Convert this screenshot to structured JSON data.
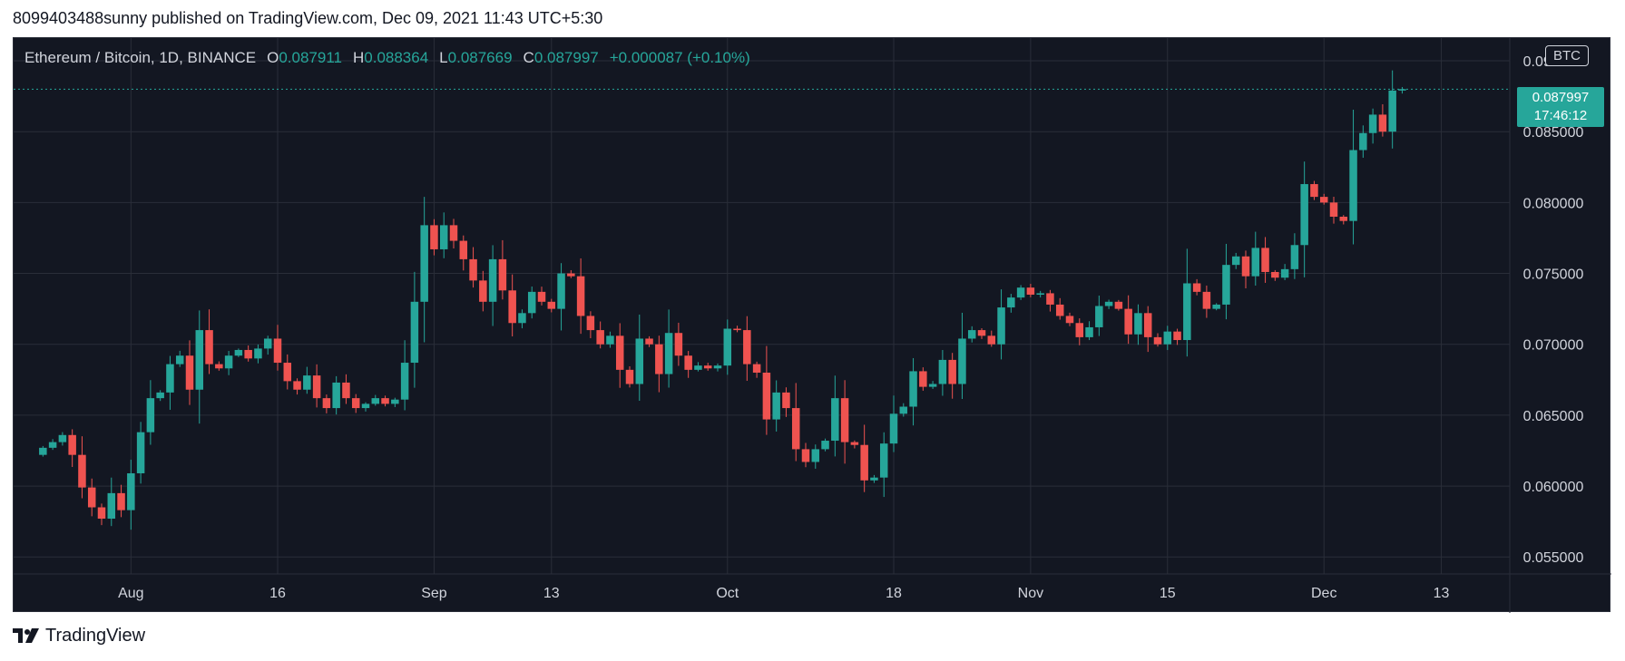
{
  "published_line": "8099403488sunny published on TradingView.com, Dec 09, 2021 11:43 UTC+5:30",
  "legend": {
    "symbol": "Ethereum / Bitcoin, 1D, BINANCE",
    "o_label": "O",
    "o_value": "0.087911",
    "h_label": "H",
    "h_value": "0.088364",
    "l_label": "L",
    "l_value": "0.087669",
    "c_label": "C",
    "c_value": "0.087997",
    "change": "+0.000087 (+0.10%)"
  },
  "currency_badge": "BTC",
  "last_price": "0.087997",
  "countdown": "17:46:12",
  "footer_brand": "TradingView",
  "colors": {
    "up": "#26a69a",
    "down": "#ef5350",
    "background": "#131722",
    "grid": "#2a2e39",
    "text": "#d1d4dc"
  },
  "chart_data": {
    "type": "candlestick",
    "y_tick_labels": [
      "0.055000",
      "0.060000",
      "0.065000",
      "0.070000",
      "0.075000",
      "0.080000",
      "0.085000",
      "0.090000"
    ],
    "y_ticks": [
      0.055,
      0.06,
      0.065,
      0.07,
      0.075,
      0.08,
      0.085,
      0.09
    ],
    "ylim": [
      0.0538,
      0.0916
    ],
    "x_tick_labels": [
      "Aug",
      "16",
      "Sep",
      "13",
      "Oct",
      "18",
      "Nov",
      "15",
      "Dec",
      "13"
    ],
    "x_tick_dates": [
      "2021-08-01",
      "2021-08-16",
      "2021-09-01",
      "2021-09-13",
      "2021-10-01",
      "2021-10-18",
      "2021-11-01",
      "2021-11-15",
      "2021-12-01",
      "2021-12-13"
    ],
    "xlim": [
      "2021-07-20",
      "2021-12-20"
    ],
    "grid": true,
    "closes": [
      0.0627,
      0.0631,
      0.0636,
      0.0622,
      0.0599,
      0.0585,
      0.0577,
      0.0595,
      0.0583,
      0.0609,
      0.0638,
      0.0662,
      0.0666,
      0.0686,
      0.0692,
      0.0668,
      0.071,
      0.0686,
      0.0683,
      0.0692,
      0.0696,
      0.069,
      0.0697,
      0.0704,
      0.0687,
      0.0674,
      0.0668,
      0.0678,
      0.0662,
      0.0655,
      0.0673,
      0.0662,
      0.0655,
      0.0658,
      0.0662,
      0.0658,
      0.0661,
      0.0687,
      0.073,
      0.0784,
      0.0767,
      0.0784,
      0.0773,
      0.076,
      0.0745,
      0.073,
      0.076,
      0.0738,
      0.0715,
      0.0722,
      0.0737,
      0.073,
      0.0725,
      0.075,
      0.0748,
      0.072,
      0.071,
      0.07,
      0.0706,
      0.0682,
      0.0672,
      0.0704,
      0.07,
      0.0679,
      0.0708,
      0.0692,
      0.0682,
      0.0685,
      0.0683,
      0.0685,
      0.0711,
      0.071,
      0.0686,
      0.068,
      0.0647,
      0.0666,
      0.0655,
      0.0626,
      0.0617,
      0.0626,
      0.0632,
      0.0662,
      0.0631,
      0.0629,
      0.0604,
      0.0606,
      0.063,
      0.0651,
      0.0656,
      0.0681,
      0.067,
      0.0672,
      0.0689,
      0.0672,
      0.0704,
      0.071,
      0.0706,
      0.07,
      0.0726,
      0.0733,
      0.074,
      0.0735,
      0.0736,
      0.0728,
      0.072,
      0.0715,
      0.0705,
      0.0712,
      0.0727,
      0.073,
      0.0725,
      0.0707,
      0.0722,
      0.0705,
      0.07,
      0.0709,
      0.0703,
      0.0743,
      0.0737,
      0.0725,
      0.0728,
      0.0756,
      0.0762,
      0.0748,
      0.0768,
      0.0751,
      0.0747,
      0.0753,
      0.077,
      0.0813,
      0.0804,
      0.08,
      0.079,
      0.0787,
      0.0837,
      0.0849,
      0.0862,
      0.085,
      0.0879,
      0.088
    ]
  }
}
